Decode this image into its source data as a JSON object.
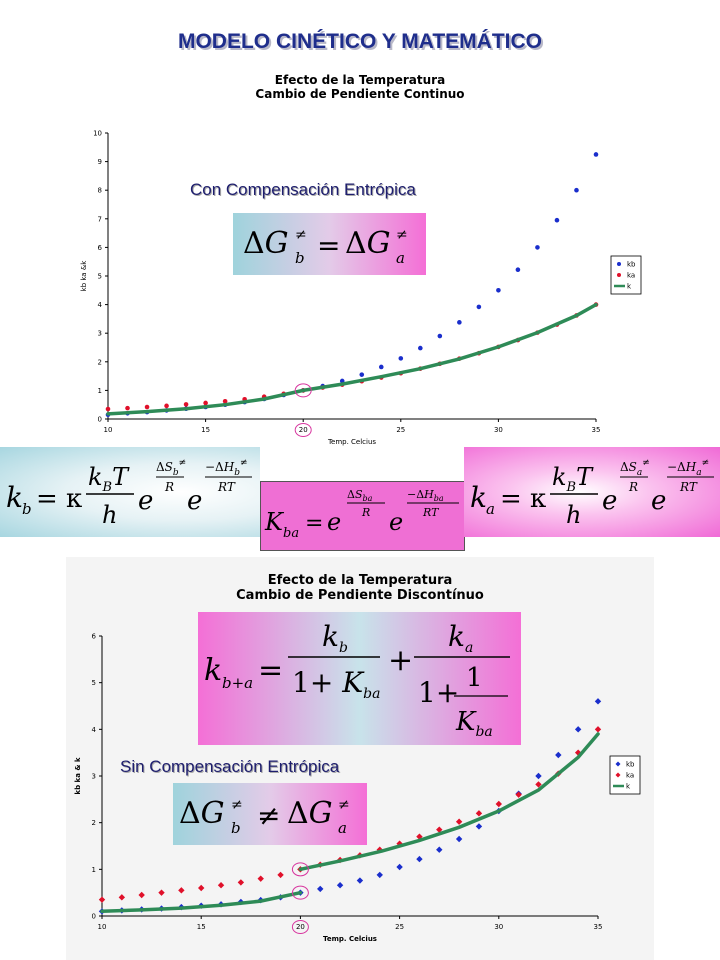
{
  "page_title": "MODELO CINÉTICO Y MATEMÁTICO",
  "chart_data": [
    {
      "type": "scatter",
      "title": "Efecto de la Temperatura",
      "subtitle": "Cambio de Pendiente Continuo",
      "xlabel": "Temp. Celcius",
      "ylabel": "kb ka &k",
      "xlim": [
        10,
        35
      ],
      "ylim": [
        0,
        10
      ],
      "xticks": [
        10,
        15,
        20,
        25,
        30,
        35
      ],
      "yticks": [
        0,
        1,
        2,
        3,
        4,
        5,
        6,
        7,
        8,
        9,
        10
      ],
      "legend_position": "right",
      "series": [
        {
          "name": "kb",
          "marker": "point",
          "color": "#1a2ecc",
          "x": [
            10,
            11,
            12,
            13,
            14,
            15,
            16,
            17,
            18,
            19,
            20,
            21,
            22,
            23,
            24,
            25,
            26,
            27,
            28,
            29,
            30,
            31,
            32,
            33,
            34,
            35
          ],
          "y": [
            0.15,
            0.2,
            0.24,
            0.3,
            0.36,
            0.42,
            0.5,
            0.59,
            0.7,
            0.84,
            1.0,
            1.15,
            1.33,
            1.55,
            1.82,
            2.12,
            2.48,
            2.9,
            3.38,
            3.92,
            4.5,
            5.22,
            6.0,
            6.95,
            8.0,
            9.25
          ]
        },
        {
          "name": "ka",
          "marker": "point",
          "color": "#e0102a",
          "x": [
            10,
            11,
            12,
            13,
            14,
            15,
            16,
            17,
            18,
            19,
            20,
            21,
            22,
            23,
            24,
            25,
            26,
            27,
            28,
            29,
            30,
            31,
            32,
            33,
            34,
            35
          ],
          "y": [
            0.35,
            0.38,
            0.42,
            0.46,
            0.51,
            0.56,
            0.62,
            0.69,
            0.78,
            0.88,
            1.0,
            1.1,
            1.2,
            1.32,
            1.45,
            1.6,
            1.76,
            1.93,
            2.11,
            2.3,
            2.52,
            2.76,
            3.02,
            3.3,
            3.62,
            4.0
          ]
        },
        {
          "name": "k",
          "marker": "line",
          "color": "#2e8b57",
          "x": [
            10,
            12,
            14,
            16,
            18,
            20,
            22,
            24,
            26,
            28,
            30,
            32,
            34,
            35
          ],
          "y": [
            0.18,
            0.26,
            0.36,
            0.5,
            0.7,
            1.0,
            1.22,
            1.48,
            1.76,
            2.1,
            2.52,
            3.02,
            3.62,
            4.0
          ]
        }
      ],
      "highlight": {
        "x": 20,
        "y": 1.0
      }
    },
    {
      "type": "scatter",
      "title": "Efecto de la Temperatura",
      "subtitle": "Cambio de Pendiente Discontínuo",
      "xlabel": "Temp. Celcius",
      "ylabel": "kb ka & k",
      "xlim": [
        10,
        35
      ],
      "ylim": [
        0,
        6
      ],
      "xticks": [
        10,
        15,
        20,
        25,
        30,
        35
      ],
      "yticks": [
        0,
        1,
        2,
        3,
        4,
        5,
        6
      ],
      "legend_position": "right",
      "series": [
        {
          "name": "kb",
          "marker": "diamond",
          "color": "#1a2ecc",
          "x": [
            10,
            11,
            12,
            13,
            14,
            15,
            16,
            17,
            18,
            19,
            20,
            21,
            22,
            23,
            24,
            25,
            26,
            27,
            28,
            29,
            30,
            31,
            32,
            33,
            34,
            35
          ],
          "y": [
            0.1,
            0.12,
            0.14,
            0.16,
            0.19,
            0.22,
            0.25,
            0.3,
            0.34,
            0.4,
            0.5,
            0.58,
            0.66,
            0.76,
            0.88,
            1.05,
            1.22,
            1.42,
            1.65,
            1.92,
            2.25,
            2.62,
            3.0,
            3.45,
            4.0,
            4.6
          ]
        },
        {
          "name": "ka",
          "marker": "diamond",
          "color": "#e0102a",
          "x": [
            10,
            11,
            12,
            13,
            14,
            15,
            16,
            17,
            18,
            19,
            20,
            21,
            22,
            23,
            24,
            25,
            26,
            27,
            28,
            29,
            30,
            31,
            32,
            33,
            34,
            35
          ],
          "y": [
            0.35,
            0.4,
            0.45,
            0.5,
            0.55,
            0.6,
            0.66,
            0.72,
            0.8,
            0.88,
            1.0,
            1.1,
            1.2,
            1.3,
            1.42,
            1.55,
            1.7,
            1.85,
            2.02,
            2.2,
            2.4,
            2.6,
            2.82,
            3.05,
            3.5,
            4.0
          ]
        },
        {
          "name": "k",
          "marker": "line",
          "color": "#2e8b57",
          "segments": [
            {
              "x": [
                10,
                12,
                14,
                16,
                18,
                20
              ],
              "y": [
                0.1,
                0.13,
                0.17,
                0.23,
                0.32,
                0.5
              ]
            },
            {
              "x": [
                20,
                22,
                24,
                26,
                28,
                30,
                32,
                34,
                35
              ],
              "y": [
                1.0,
                1.18,
                1.38,
                1.62,
                1.9,
                2.25,
                2.7,
                3.4,
                3.9
              ]
            }
          ]
        }
      ],
      "highlights": [
        {
          "x": 20,
          "y": 0.5
        },
        {
          "x": 20,
          "y": 1.0
        }
      ]
    }
  ],
  "notes": {
    "con": "Con Compensación Entrópica",
    "sin": "Sin Compensación Entrópica"
  },
  "colors": {
    "title": "#1f2e8c",
    "kb": "#1a2ecc",
    "ka": "#e0102a",
    "k": "#2e8b57",
    "pink": "#f46fd6",
    "cyan": "#9fd3dc"
  }
}
